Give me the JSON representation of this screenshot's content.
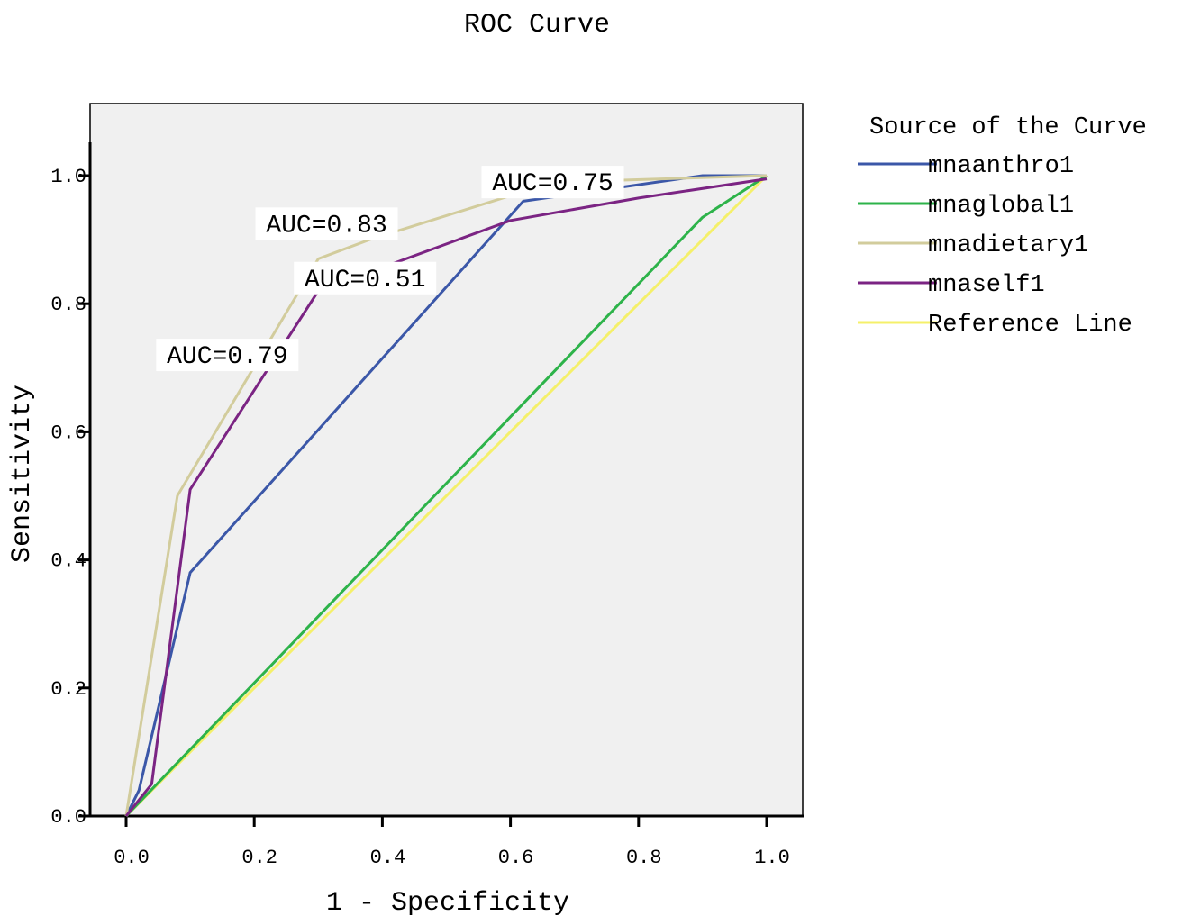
{
  "chart_data": {
    "type": "line",
    "title": "ROC Curve",
    "xlabel": "1 - Specificity",
    "ylabel": "Sensitivity",
    "xlim": [
      0.0,
      1.0
    ],
    "ylim": [
      0.0,
      1.0
    ],
    "x_ticks": [
      "0.0",
      "0.2",
      "0.4",
      "0.6",
      "0.8",
      "1.0"
    ],
    "y_ticks": [
      "0.0",
      "0.2",
      "0.4",
      "0.6",
      "0.8",
      "1.0"
    ],
    "plot_background": "#f0f0f0",
    "grid": false,
    "legend": {
      "title": "Source of the Curve",
      "placement": "right"
    },
    "series": [
      {
        "name": "mnaanthro1",
        "color": "#3b57a8",
        "points": [
          [
            0.0,
            0.0
          ],
          [
            0.02,
            0.04
          ],
          [
            0.1,
            0.38
          ],
          [
            0.62,
            0.96
          ],
          [
            0.9,
            1.0
          ],
          [
            1.0,
            1.0
          ]
        ]
      },
      {
        "name": "mnaglobal1",
        "color": "#2db34a",
        "points": [
          [
            0.0,
            0.0
          ],
          [
            0.9,
            0.935
          ],
          [
            1.0,
            1.0
          ]
        ]
      },
      {
        "name": "mnadietary1",
        "color": "#d2cc9c",
        "points": [
          [
            0.0,
            0.0
          ],
          [
            0.08,
            0.5
          ],
          [
            0.3,
            0.87
          ],
          [
            0.38,
            0.9
          ],
          [
            0.62,
            0.975
          ],
          [
            0.68,
            0.99
          ],
          [
            1.0,
            1.0
          ]
        ]
      },
      {
        "name": "mnaself1",
        "color": "#7b2483",
        "points": [
          [
            0.0,
            0.0
          ],
          [
            0.04,
            0.05
          ],
          [
            0.1,
            0.51
          ],
          [
            0.3,
            0.82
          ],
          [
            0.6,
            0.93
          ],
          [
            0.8,
            0.965
          ],
          [
            1.0,
            0.995
          ]
        ]
      },
      {
        "name": "Reference Line",
        "color": "#f5f06a",
        "points": [
          [
            0.0,
            0.0
          ],
          [
            1.0,
            1.0
          ]
        ]
      }
    ],
    "annotations": [
      {
        "text": "AUC=0.75",
        "x": 0.666,
        "y": 0.99
      },
      {
        "text": "AUC=0.83",
        "x": 0.313,
        "y": 0.925
      },
      {
        "text": "AUC=0.51",
        "x": 0.373,
        "y": 0.84
      },
      {
        "text": "AUC=0.79",
        "x": 0.158,
        "y": 0.72
      }
    ]
  }
}
